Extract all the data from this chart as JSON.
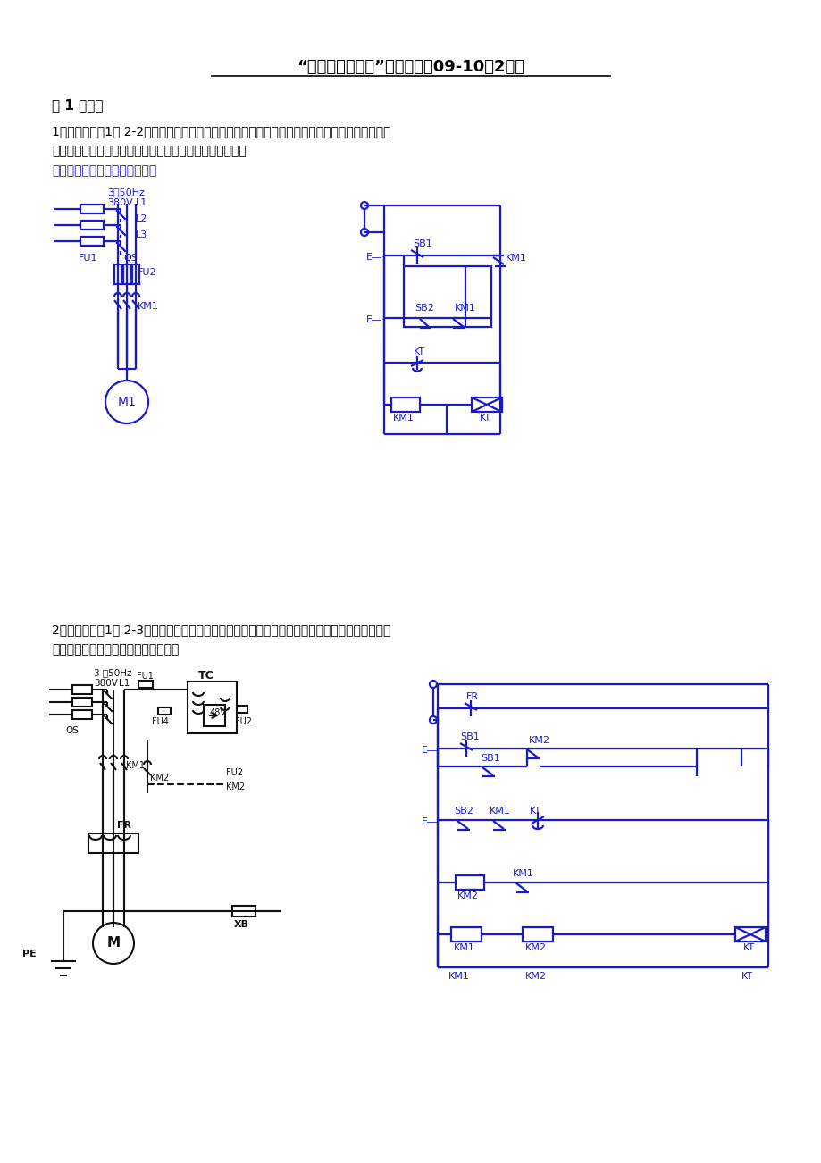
{
  "bg": "#ffffff",
  "black": "#000000",
  "blue": "#1a1acc",
  "blue2": "#000099",
  "title": "“机电传动与控制”习题解答（09-10（2））",
  "sec1": "第 1 次作业",
  "q1l1": "1、（参考书［1］ 2-2）试用延时动作瞬时复位的时间继电器、接触器、按鈕开关等画出控制一个",
  "q1l2": "电动机只通电一定时间的电路（设计主电路和控制电路）。",
  "q1ans": "解：该电动机为小容量电动机。",
  "q2l1": "2、（参考书［1］ 2-3）在下图的能耗制动控制电路中，若用断电延时触头代替该图中的通电延时",
  "q2l2": "触头，请修改控制电路（重新画图）。"
}
